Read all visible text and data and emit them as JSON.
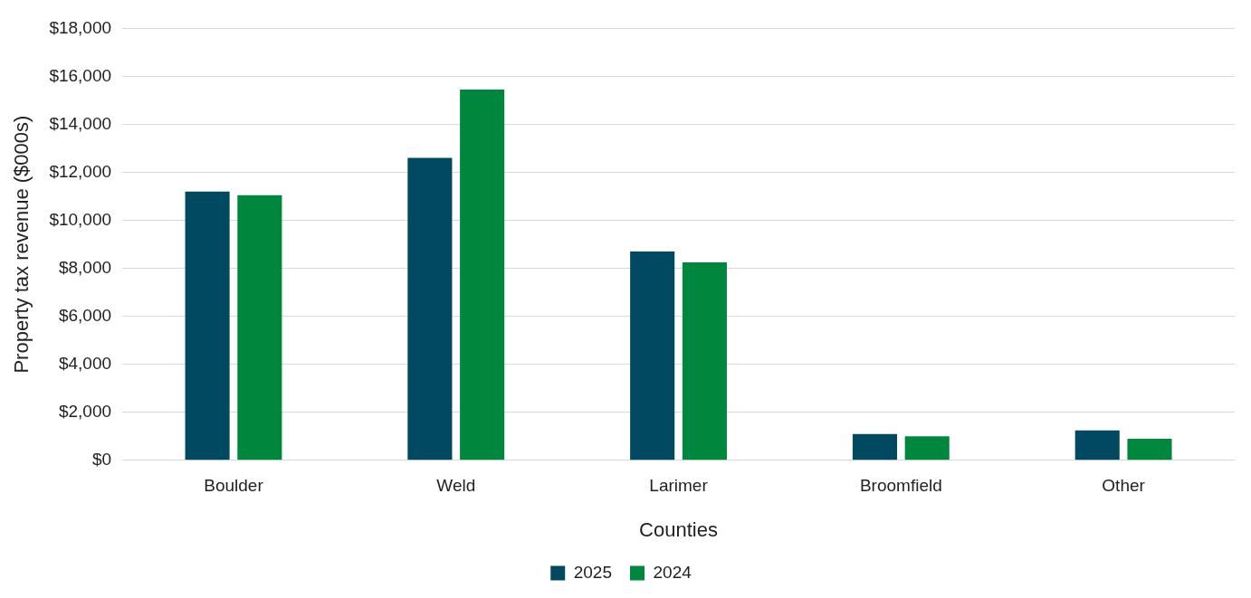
{
  "chart_data": {
    "type": "bar",
    "xlabel": "Counties",
    "ylabel": "Property tax revenue ($000s)",
    "categories": [
      "Boulder",
      "Weld",
      "Larimer",
      "Broomfield",
      "Other"
    ],
    "series": [
      {
        "name": "2025",
        "color": "#004960",
        "values": [
          11200,
          12600,
          8700,
          1100,
          1250
        ]
      },
      {
        "name": "2024",
        "color": "#00873e",
        "values": [
          11050,
          15450,
          8250,
          1000,
          900
        ]
      }
    ],
    "ylim": [
      0,
      18000
    ],
    "yticks": [
      {
        "value": 0,
        "label": "$0"
      },
      {
        "value": 2000,
        "label": "$2,000"
      },
      {
        "value": 4000,
        "label": "$4,000"
      },
      {
        "value": 6000,
        "label": "$6,000"
      },
      {
        "value": 8000,
        "label": "$8,000"
      },
      {
        "value": 10000,
        "label": "$10,000"
      },
      {
        "value": 12000,
        "label": "$12,000"
      },
      {
        "value": 14000,
        "label": "$14,000"
      },
      {
        "value": 16000,
        "label": "$16,000"
      },
      {
        "value": 18000,
        "label": "$18,000"
      }
    ],
    "grid": "y",
    "legend": "bottom"
  }
}
